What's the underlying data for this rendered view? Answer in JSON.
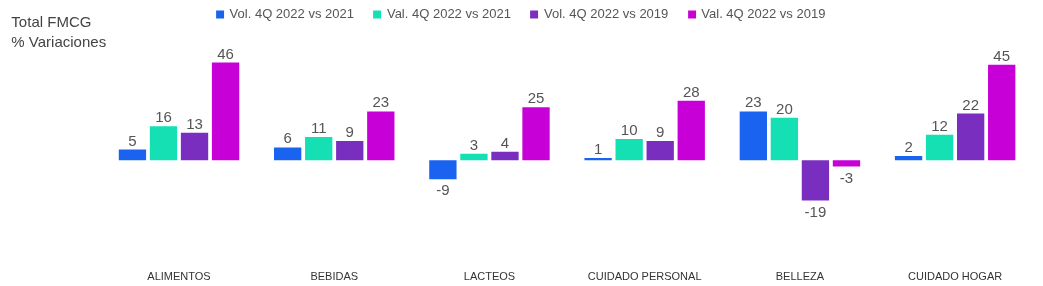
{
  "chart_data": {
    "type": "bar",
    "title": "Total FMCG\n% Variaciones",
    "categories": [
      "ALIMENTOS",
      "BEBIDAS",
      "LACTEOS",
      "CUIDADO PERSONAL",
      "BELLEZA",
      "CUIDADO HOGAR"
    ],
    "series": [
      {
        "name": "Vol. 4Q 2022 vs 2021",
        "color": "#1a62f0",
        "values": [
          5,
          6,
          -9,
          1,
          23,
          2
        ]
      },
      {
        "name": "Val. 4Q 2022 vs 2021",
        "color": "#14e0b4",
        "values": [
          16,
          11,
          3,
          10,
          20,
          12
        ]
      },
      {
        "name": "Vol. 4Q 2022 vs 2019",
        "color": "#7a2ec0",
        "values": [
          13,
          9,
          4,
          9,
          -19,
          22
        ]
      },
      {
        "name": "Val. 4Q 2022 vs 2019",
        "color": "#c800d8",
        "values": [
          46,
          23,
          25,
          28,
          -3,
          45
        ]
      }
    ],
    "data_labels": true,
    "legend": "top",
    "grid": false,
    "tick_labels": "x"
  }
}
